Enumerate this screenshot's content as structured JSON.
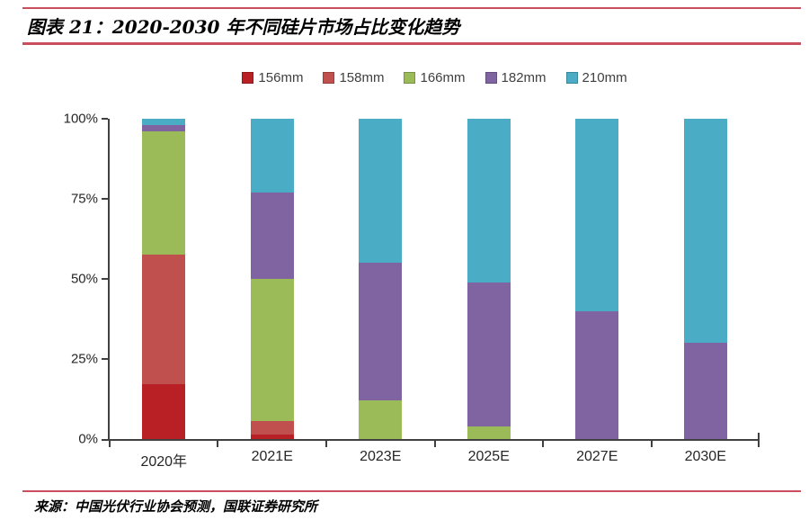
{
  "header": {
    "title": "图表 21：2020-2030 年不同硅片市场占比变化趋势"
  },
  "footer": {
    "source": "来源：中国光伏行业协会预测，国联证券研究所"
  },
  "colors": {
    "rule": "#c94f5f",
    "axis": "#404040",
    "label": "#262626",
    "legend_text": "#404040"
  },
  "chart_data": {
    "type": "bar",
    "stacked": true,
    "title": "图表 21：2020-2030 年不同硅片市场占比变化趋势",
    "categories": [
      "2020年",
      "2021E",
      "2023E",
      "2025E",
      "2027E",
      "2030E"
    ],
    "series": [
      {
        "name": "156mm",
        "color": "#b92025",
        "values": [
          17,
          1.5,
          0,
          0,
          0,
          0
        ]
      },
      {
        "name": "158mm",
        "color": "#c0504d",
        "values": [
          40.5,
          4,
          0,
          0,
          0,
          0
        ]
      },
      {
        "name": "166mm",
        "color": "#9bbb59",
        "values": [
          38.5,
          44.5,
          12,
          4,
          0,
          0
        ]
      },
      {
        "name": "182mm",
        "color": "#8064a2",
        "values": [
          2,
          27,
          43,
          45,
          40,
          30
        ]
      },
      {
        "name": "210mm",
        "color": "#4bacc6",
        "values": [
          2,
          23,
          45,
          51,
          60,
          70
        ]
      }
    ],
    "ylabel": "",
    "xlabel": "",
    "ylim": [
      0,
      100
    ],
    "yticks": [
      "0%",
      "25%",
      "50%",
      "75%",
      "100%"
    ],
    "grid": false,
    "legend_position": "top-center"
  }
}
